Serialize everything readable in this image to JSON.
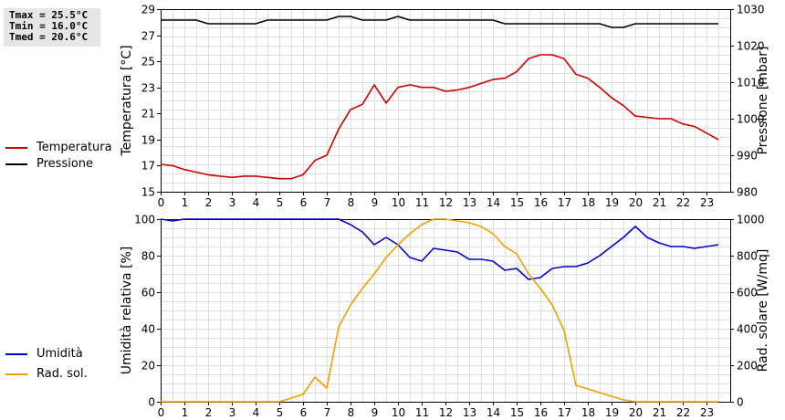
{
  "stats": [
    "Tmax = 25.5°C",
    "Tmin = 16.0°C",
    "Tmed = 20.6°C"
  ],
  "legend_top": [
    {
      "label": "Temperatura",
      "color": "#cc0000"
    },
    {
      "label": "Pressione",
      "color": "#000000"
    }
  ],
  "legend_bottom": [
    {
      "label": "Umidità",
      "color": "#0000cc"
    },
    {
      "label": "Rad. sol.",
      "color": "#f0a000"
    }
  ],
  "chart_data": [
    {
      "type": "line",
      "xlabel": "",
      "xlim": [
        0,
        24
      ],
      "x_ticks": [
        "0",
        "1",
        "2",
        "3",
        "4",
        "5",
        "6",
        "7",
        "8",
        "9",
        "10",
        "11",
        "12",
        "13",
        "14",
        "15",
        "16",
        "17",
        "18",
        "19",
        "20",
        "21",
        "22",
        "23"
      ],
      "ylabel_left": "Temperatura [°C]",
      "ylim_left": [
        15,
        29
      ],
      "y_ticks_left": [
        "15",
        "17",
        "19",
        "21",
        "23",
        "25",
        "27",
        "29"
      ],
      "ylabel_right": "Pressione [mbar]",
      "ylim_right": [
        980,
        1030
      ],
      "y_ticks_right": [
        "980",
        "990",
        "1000",
        "1010",
        "1020",
        "1030"
      ],
      "grid": true,
      "series": [
        {
          "name": "Temperatura",
          "axis": "left",
          "color": "#cc0000",
          "x": [
            0,
            0.5,
            1,
            1.5,
            2,
            2.5,
            3,
            3.5,
            4,
            4.5,
            5,
            5.5,
            6,
            6.5,
            7,
            7.5,
            8,
            8.5,
            9,
            9.5,
            10,
            10.5,
            11,
            11.5,
            12,
            12.5,
            13,
            13.5,
            14,
            14.5,
            15,
            15.5,
            16,
            16.5,
            17,
            17.5,
            18,
            18.5,
            19,
            19.5,
            20,
            20.5,
            21,
            21.5,
            22,
            22.5,
            23,
            23.5
          ],
          "y": [
            17.1,
            17.0,
            16.7,
            16.5,
            16.3,
            16.2,
            16.1,
            16.2,
            16.2,
            16.1,
            16.0,
            16.0,
            16.3,
            17.4,
            17.8,
            19.8,
            21.3,
            21.7,
            23.2,
            21.8,
            23.0,
            23.2,
            23.0,
            23.0,
            22.7,
            22.8,
            23.0,
            23.3,
            23.6,
            23.7,
            24.2,
            25.2,
            25.5,
            25.5,
            25.2,
            24.0,
            23.7,
            23.0,
            22.2,
            21.6,
            20.8,
            20.7,
            20.6,
            20.6,
            20.2,
            20.0,
            19.5,
            19.0
          ]
        },
        {
          "name": "Pressione",
          "axis": "right",
          "color": "#000000",
          "x": [
            0,
            1,
            1.5,
            2,
            2.5,
            3,
            3.5,
            4,
            4.5,
            5,
            5.5,
            6,
            6.5,
            7,
            7.5,
            8,
            8.5,
            9,
            9.5,
            10,
            10.5,
            11,
            11.5,
            12,
            12.5,
            13,
            13.5,
            14,
            14.5,
            15,
            15.5,
            16,
            16.5,
            17,
            17.5,
            18,
            18.5,
            19,
            19.5,
            20,
            20.5,
            21,
            21.5,
            22,
            22.5,
            23,
            23.5
          ],
          "y": [
            1027,
            1027,
            1027,
            1026,
            1026,
            1026,
            1026,
            1026,
            1027,
            1027,
            1027,
            1027,
            1027,
            1027,
            1028,
            1028,
            1027,
            1027,
            1027,
            1028,
            1027,
            1027,
            1027,
            1027,
            1027,
            1027,
            1027,
            1027,
            1026,
            1026,
            1026,
            1026,
            1026,
            1026,
            1026,
            1026,
            1026,
            1025,
            1025,
            1026,
            1026,
            1026,
            1026,
            1026,
            1026,
            1026,
            1026
          ]
        }
      ]
    },
    {
      "type": "line",
      "xlabel": "",
      "xlim": [
        0,
        24
      ],
      "x_ticks": [
        "0",
        "1",
        "2",
        "3",
        "4",
        "5",
        "6",
        "7",
        "8",
        "9",
        "10",
        "11",
        "12",
        "13",
        "14",
        "15",
        "16",
        "17",
        "18",
        "19",
        "20",
        "21",
        "22",
        "23"
      ],
      "ylabel_left": "Umidità relativa [%]",
      "ylim_left": [
        0,
        100
      ],
      "y_ticks_left": [
        "0",
        "20",
        "40",
        "60",
        "80",
        "100"
      ],
      "ylabel_right": "Rad. solare [W/mq]",
      "ylim_right": [
        0,
        1000
      ],
      "y_ticks_right": [
        "0",
        "200",
        "400",
        "600",
        "800",
        "1000"
      ],
      "grid": true,
      "series": [
        {
          "name": "Umidità",
          "axis": "left",
          "color": "#0000cc",
          "x": [
            0,
            0.5,
            1,
            1.5,
            2,
            7.5,
            8,
            8.5,
            9,
            9.5,
            10,
            10.5,
            11,
            11.5,
            12,
            12.5,
            13,
            13.5,
            14,
            14.5,
            15,
            15.5,
            16,
            16.5,
            17,
            17.5,
            18,
            18.5,
            19,
            19.5,
            20,
            20.5,
            21,
            21.5,
            22,
            22.5,
            23,
            23.5
          ],
          "y": [
            100,
            99,
            100,
            100,
            100,
            100,
            97,
            93,
            86,
            90,
            86,
            79,
            77,
            84,
            83,
            82,
            78,
            78,
            77,
            72,
            73,
            67,
            68,
            73,
            74,
            74,
            76,
            80,
            85,
            90,
            96,
            90,
            87,
            85,
            85,
            84,
            85,
            86
          ]
        },
        {
          "name": "Rad. sol.",
          "axis": "right",
          "color": "#f0a000",
          "x": [
            0,
            5,
            5.5,
            6,
            6.5,
            7,
            7.5,
            8,
            8.5,
            9,
            9.5,
            10,
            10.5,
            11,
            11.5,
            12,
            12.5,
            13,
            13.5,
            14,
            14.5,
            15,
            15.5,
            16,
            16.5,
            17,
            17.5,
            18,
            18.5,
            19,
            19.5,
            20,
            23.5
          ],
          "y": [
            0,
            0,
            20,
            40,
            135,
            75,
            410,
            530,
            620,
            700,
            790,
            860,
            920,
            970,
            1000,
            1000,
            990,
            980,
            960,
            920,
            850,
            810,
            700,
            620,
            530,
            390,
            90,
            70,
            50,
            30,
            10,
            0,
            0
          ]
        }
      ]
    }
  ]
}
